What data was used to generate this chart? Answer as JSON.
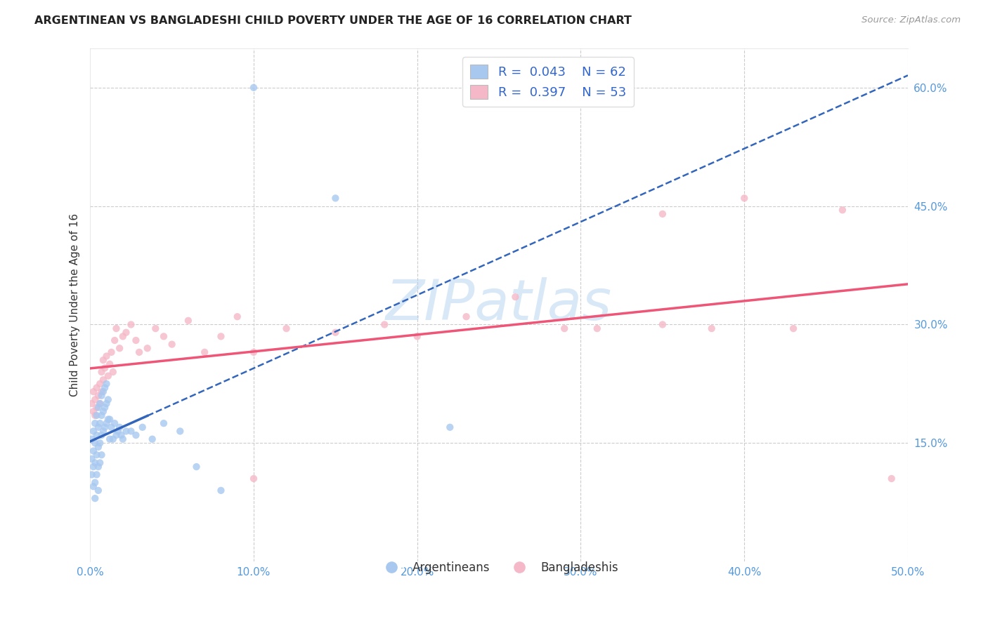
{
  "title": "ARGENTINEAN VS BANGLADESHI CHILD POVERTY UNDER THE AGE OF 16 CORRELATION CHART",
  "source": "Source: ZipAtlas.com",
  "ylabel": "Child Poverty Under the Age of 16",
  "xlim": [
    0.0,
    0.5
  ],
  "ylim": [
    0.0,
    0.65
  ],
  "xticks": [
    0.0,
    0.1,
    0.2,
    0.3,
    0.4,
    0.5
  ],
  "xticklabels": [
    "0.0%",
    "10.0%",
    "20.0%",
    "30.0%",
    "40.0%",
    "50.0%"
  ],
  "yticks_right": [
    0.15,
    0.3,
    0.45,
    0.6
  ],
  "ytick_right_labels": [
    "15.0%",
    "30.0%",
    "45.0%",
    "60.0%"
  ],
  "grid_color": "#cccccc",
  "background_color": "#ffffff",
  "watermark": "ZIPatlas",
  "legend_R1": "0.043",
  "legend_N1": "62",
  "legend_R2": "0.397",
  "legend_N2": "53",
  "arg_color": "#a8c8f0",
  "ban_color": "#f5b8c8",
  "arg_line_color": "#3366bb",
  "ban_line_color": "#ee5577",
  "scatter_alpha": 0.8,
  "scatter_size": 55,
  "arg_x": [
    0.001,
    0.001,
    0.001,
    0.002,
    0.002,
    0.002,
    0.002,
    0.003,
    0.003,
    0.003,
    0.003,
    0.003,
    0.004,
    0.004,
    0.004,
    0.004,
    0.005,
    0.005,
    0.005,
    0.005,
    0.005,
    0.006,
    0.006,
    0.006,
    0.006,
    0.007,
    0.007,
    0.007,
    0.007,
    0.008,
    0.008,
    0.008,
    0.009,
    0.009,
    0.009,
    0.01,
    0.01,
    0.01,
    0.011,
    0.011,
    0.012,
    0.012,
    0.013,
    0.014,
    0.015,
    0.016,
    0.017,
    0.018,
    0.019,
    0.02,
    0.022,
    0.025,
    0.028,
    0.032,
    0.038,
    0.045,
    0.055,
    0.065,
    0.08,
    0.1,
    0.15,
    0.22
  ],
  "arg_y": [
    0.155,
    0.13,
    0.11,
    0.165,
    0.14,
    0.12,
    0.095,
    0.175,
    0.15,
    0.125,
    0.1,
    0.08,
    0.185,
    0.16,
    0.135,
    0.11,
    0.195,
    0.17,
    0.145,
    0.12,
    0.09,
    0.2,
    0.175,
    0.15,
    0.125,
    0.21,
    0.185,
    0.16,
    0.135,
    0.215,
    0.19,
    0.165,
    0.22,
    0.195,
    0.17,
    0.225,
    0.2,
    0.175,
    0.205,
    0.18,
    0.18,
    0.155,
    0.17,
    0.155,
    0.175,
    0.16,
    0.165,
    0.17,
    0.16,
    0.155,
    0.165,
    0.165,
    0.16,
    0.17,
    0.155,
    0.175,
    0.165,
    0.12,
    0.09,
    0.6,
    0.46,
    0.17
  ],
  "ban_x": [
    0.001,
    0.002,
    0.002,
    0.003,
    0.003,
    0.004,
    0.004,
    0.005,
    0.006,
    0.006,
    0.007,
    0.007,
    0.008,
    0.008,
    0.009,
    0.01,
    0.011,
    0.012,
    0.013,
    0.014,
    0.015,
    0.016,
    0.018,
    0.02,
    0.022,
    0.025,
    0.028,
    0.03,
    0.035,
    0.04,
    0.045,
    0.05,
    0.06,
    0.07,
    0.08,
    0.09,
    0.1,
    0.12,
    0.15,
    0.18,
    0.2,
    0.23,
    0.26,
    0.29,
    0.31,
    0.35,
    0.38,
    0.4,
    0.43,
    0.46,
    0.49,
    0.35,
    0.1
  ],
  "ban_y": [
    0.2,
    0.215,
    0.19,
    0.205,
    0.185,
    0.22,
    0.195,
    0.21,
    0.225,
    0.2,
    0.24,
    0.215,
    0.255,
    0.23,
    0.245,
    0.26,
    0.235,
    0.25,
    0.265,
    0.24,
    0.28,
    0.295,
    0.27,
    0.285,
    0.29,
    0.3,
    0.28,
    0.265,
    0.27,
    0.295,
    0.285,
    0.275,
    0.305,
    0.265,
    0.285,
    0.31,
    0.265,
    0.295,
    0.29,
    0.3,
    0.285,
    0.31,
    0.335,
    0.295,
    0.295,
    0.3,
    0.295,
    0.46,
    0.295,
    0.445,
    0.105,
    0.44,
    0.105
  ],
  "arg_line_x_solid_end": 0.035,
  "arg_line_intercept": 0.175,
  "arg_line_slope": 0.5,
  "ban_line_intercept": 0.185,
  "ban_line_slope": 0.55
}
